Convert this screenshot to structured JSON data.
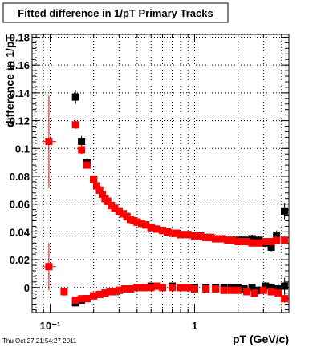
{
  "chart_data": {
    "type": "scatter",
    "title": "Fitted difference in 1/pT  Primary Tracks",
    "xlabel": "pT (GeV/c)",
    "ylabel": "difference in 1/pT",
    "x_scale": "log",
    "xlim": [
      0.075,
      4.5
    ],
    "ylim": [
      -0.018,
      0.182
    ],
    "x_tick_labels": [
      "10⁻¹",
      "1"
    ],
    "y_ticks": [
      0,
      0.02,
      0.04,
      0.06,
      0.08,
      0.1,
      0.12,
      0.14,
      0.16,
      0.18
    ],
    "y_tick_labels": [
      "0",
      "0.02",
      "0.04",
      "0.06",
      "0.08",
      "0.1",
      "0.12",
      "0.14",
      "0.16",
      "0.18"
    ],
    "grid": true,
    "timestamp": "Thu Oct 27 21:54:27 2011",
    "colors": {
      "series_black": "#000000",
      "series_red": "#ff0000"
    },
    "series": [
      {
        "color": "#000000",
        "points": [
          [
            0.15,
            0.137,
            0.005
          ],
          [
            0.165,
            0.105,
            0.004
          ],
          [
            0.18,
            0.09,
            0.003
          ],
          [
            0.2,
            0.078,
            0.002
          ],
          [
            0.21,
            0.073,
            0.002
          ],
          [
            0.22,
            0.07,
            0.002
          ],
          [
            0.23,
            0.067,
            0.001
          ],
          [
            0.24,
            0.064,
            0.001
          ],
          [
            0.25,
            0.062,
            0.001
          ],
          [
            0.265,
            0.059,
            0.001
          ],
          [
            0.28,
            0.057,
            0.001
          ],
          [
            0.3,
            0.055,
            0.001
          ],
          [
            0.32,
            0.053,
            0.001
          ],
          [
            0.34,
            0.051,
            0.001
          ],
          [
            0.36,
            0.049,
            0.001
          ],
          [
            0.38,
            0.048,
            0.001
          ],
          [
            0.4,
            0.047,
            0.001
          ],
          [
            0.43,
            0.046,
            0.001
          ],
          [
            0.46,
            0.045,
            0.001
          ],
          [
            0.5,
            0.043,
            0.001
          ],
          [
            0.55,
            0.042,
            0.001
          ],
          [
            0.6,
            0.041,
            0.001
          ],
          [
            0.65,
            0.04,
            0.001
          ],
          [
            0.7,
            0.039,
            0.001
          ],
          [
            0.75,
            0.039,
            0.001
          ],
          [
            0.8,
            0.038,
            0.001
          ],
          [
            0.9,
            0.038,
            0.001
          ],
          [
            1.0,
            0.037,
            0.001
          ],
          [
            1.1,
            0.037,
            0.001
          ],
          [
            1.2,
            0.036,
            0.001
          ],
          [
            1.3,
            0.036,
            0.001
          ],
          [
            1.4,
            0.035,
            0.001
          ],
          [
            1.55,
            0.035,
            0.001
          ],
          [
            1.7,
            0.034,
            0.001
          ],
          [
            1.85,
            0.034,
            0.001
          ],
          [
            2.0,
            0.034,
            0.001
          ],
          [
            2.15,
            0.034,
            0.002
          ],
          [
            2.3,
            0.034,
            0.002
          ],
          [
            2.5,
            0.035,
            0.003
          ],
          [
            2.8,
            0.034,
            0.003
          ],
          [
            3.1,
            0.032,
            0.003
          ],
          [
            3.4,
            0.029,
            0.003
          ],
          [
            3.7,
            0.037,
            0.004
          ],
          [
            4.2,
            0.055,
            0.006
          ],
          [
            0.15,
            -0.011,
            0.002
          ],
          [
            0.165,
            -0.009,
            0.002
          ],
          [
            0.18,
            -0.008,
            0.002
          ],
          [
            0.2,
            -0.006,
            0.001
          ],
          [
            0.22,
            -0.005,
            0.001
          ],
          [
            0.24,
            -0.004,
            0.001
          ],
          [
            0.26,
            -0.003,
            0.001
          ],
          [
            0.28,
            -0.003,
            0.001
          ],
          [
            0.3,
            -0.002,
            0.001
          ],
          [
            0.33,
            -0.001,
            0.001
          ],
          [
            0.36,
            -0.001,
            0.001
          ],
          [
            0.4,
            0.0,
            0.001
          ],
          [
            0.45,
            0.0,
            0.001
          ],
          [
            0.5,
            0.001,
            0.001
          ],
          [
            0.55,
            0.001,
            0.001
          ],
          [
            0.6,
            0.0,
            0.001
          ],
          [
            0.7,
            0.001,
            0.001
          ],
          [
            0.8,
            0.0,
            0.001
          ],
          [
            0.9,
            0.0,
            0.001
          ],
          [
            1.0,
            0.0,
            0.001
          ],
          [
            1.2,
            0.0,
            0.001
          ],
          [
            1.4,
            0.0,
            0.001
          ],
          [
            1.6,
            0.0,
            0.001
          ],
          [
            1.8,
            0.0,
            0.001
          ],
          [
            2.0,
            0.0,
            0.001
          ],
          [
            2.2,
            -0.001,
            0.002
          ],
          [
            2.5,
            0.0,
            0.002
          ],
          [
            2.8,
            -0.002,
            0.003
          ],
          [
            3.1,
            0.001,
            0.003
          ],
          [
            3.4,
            0.0,
            0.003
          ],
          [
            3.8,
            -0.001,
            0.004
          ],
          [
            4.2,
            0.001,
            0.006
          ]
        ]
      },
      {
        "color": "#ff0000",
        "points": [
          [
            0.098,
            0.105,
            0.033
          ],
          [
            0.15,
            0.117,
            0.003
          ],
          [
            0.165,
            0.099,
            0.003
          ],
          [
            0.18,
            0.088,
            0.002
          ],
          [
            0.2,
            0.078,
            0.002
          ],
          [
            0.21,
            0.073,
            0.001
          ],
          [
            0.22,
            0.07,
            0.001
          ],
          [
            0.23,
            0.067,
            0.001
          ],
          [
            0.24,
            0.064,
            0.001
          ],
          [
            0.25,
            0.062,
            0.001
          ],
          [
            0.265,
            0.059,
            0.001
          ],
          [
            0.28,
            0.057,
            0.001
          ],
          [
            0.3,
            0.055,
            0.001
          ],
          [
            0.32,
            0.053,
            0.001
          ],
          [
            0.34,
            0.051,
            0.001
          ],
          [
            0.36,
            0.049,
            0.001
          ],
          [
            0.38,
            0.048,
            0.001
          ],
          [
            0.4,
            0.047,
            0.001
          ],
          [
            0.43,
            0.046,
            0.001
          ],
          [
            0.46,
            0.045,
            0.001
          ],
          [
            0.5,
            0.043,
            0.001
          ],
          [
            0.55,
            0.042,
            0.001
          ],
          [
            0.6,
            0.041,
            0.001
          ],
          [
            0.65,
            0.04,
            0.001
          ],
          [
            0.7,
            0.039,
            0.001
          ],
          [
            0.75,
            0.039,
            0.001
          ],
          [
            0.8,
            0.038,
            0.001
          ],
          [
            0.9,
            0.038,
            0.001
          ],
          [
            1.0,
            0.037,
            0.001
          ],
          [
            1.1,
            0.037,
            0.001
          ],
          [
            1.2,
            0.036,
            0.001
          ],
          [
            1.3,
            0.036,
            0.001
          ],
          [
            1.4,
            0.035,
            0.001
          ],
          [
            1.55,
            0.035,
            0.001
          ],
          [
            1.7,
            0.034,
            0.001
          ],
          [
            1.85,
            0.034,
            0.001
          ],
          [
            2.0,
            0.033,
            0.001
          ],
          [
            2.15,
            0.033,
            0.001
          ],
          [
            2.3,
            0.033,
            0.001
          ],
          [
            2.5,
            0.032,
            0.002
          ],
          [
            2.8,
            0.032,
            0.002
          ],
          [
            3.1,
            0.033,
            0.002
          ],
          [
            3.4,
            0.033,
            0.002
          ],
          [
            3.7,
            0.034,
            0.002
          ],
          [
            4.2,
            0.034,
            0.003
          ],
          [
            0.098,
            0.015,
            0.017
          ],
          [
            0.125,
            -0.003,
            0.003
          ],
          [
            0.15,
            -0.009,
            0.002
          ],
          [
            0.165,
            -0.008,
            0.001
          ],
          [
            0.18,
            -0.008,
            0.001
          ],
          [
            0.2,
            -0.006,
            0.001
          ],
          [
            0.22,
            -0.005,
            0.001
          ],
          [
            0.24,
            -0.004,
            0.001
          ],
          [
            0.26,
            -0.003,
            0.001
          ],
          [
            0.28,
            -0.003,
            0.001
          ],
          [
            0.3,
            -0.002,
            0.001
          ],
          [
            0.33,
            -0.001,
            0.001
          ],
          [
            0.36,
            -0.001,
            0.001
          ],
          [
            0.4,
            0.0,
            0.001
          ],
          [
            0.45,
            0.0,
            0.001
          ],
          [
            0.5,
            0.0,
            0.001
          ],
          [
            0.55,
            0.001,
            0.001
          ],
          [
            0.6,
            0.0,
            0.001
          ],
          [
            0.7,
            0.0,
            0.001
          ],
          [
            0.8,
            0.0,
            0.001
          ],
          [
            0.9,
            0.0,
            0.001
          ],
          [
            1.0,
            -0.001,
            0.001
          ],
          [
            1.2,
            -0.001,
            0.001
          ],
          [
            1.4,
            -0.001,
            0.001
          ],
          [
            1.6,
            -0.002,
            0.001
          ],
          [
            1.8,
            -0.002,
            0.001
          ],
          [
            2.0,
            -0.002,
            0.001
          ],
          [
            2.3,
            -0.003,
            0.001
          ],
          [
            2.6,
            -0.004,
            0.002
          ],
          [
            3.0,
            -0.002,
            0.002
          ],
          [
            3.4,
            -0.003,
            0.002
          ],
          [
            3.8,
            -0.004,
            0.002
          ],
          [
            4.2,
            -0.008,
            0.003
          ]
        ]
      }
    ]
  }
}
